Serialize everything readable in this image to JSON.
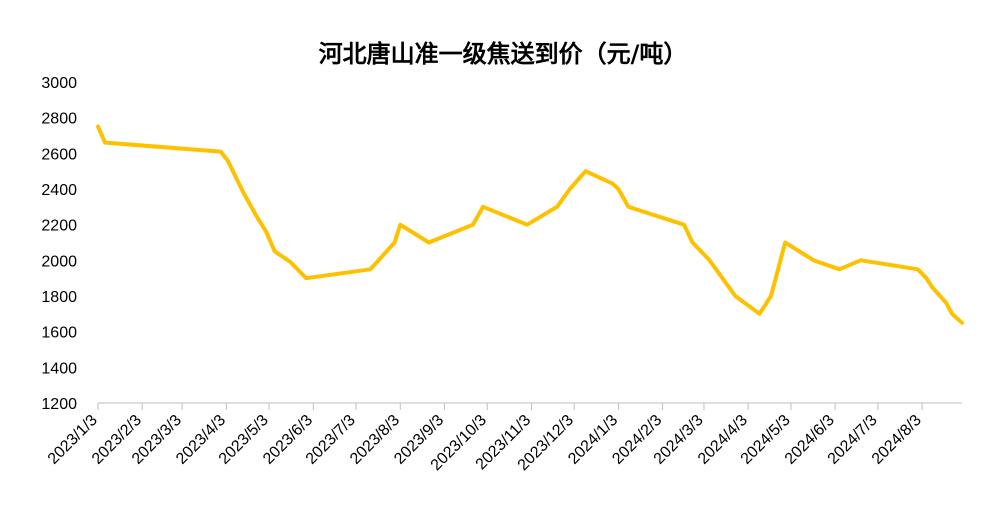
{
  "chart_data": {
    "type": "line",
    "title": "河北唐山准一级焦送到价（元/吨）",
    "xlabel": "",
    "ylabel": "",
    "ylim": [
      1200,
      3000
    ],
    "yticks": [
      1200,
      1400,
      1600,
      1800,
      2000,
      2200,
      2400,
      2600,
      2800,
      3000
    ],
    "xlim": [
      "2023-01-03",
      "2024-08-31"
    ],
    "xticks": [
      {
        "date": "2023-01-03",
        "label": "2023/1/3"
      },
      {
        "date": "2023-02-03",
        "label": "2023/2/3"
      },
      {
        "date": "2023-03-03",
        "label": "2023/3/3"
      },
      {
        "date": "2023-04-03",
        "label": "2023/4/3"
      },
      {
        "date": "2023-05-03",
        "label": "2023/5/3"
      },
      {
        "date": "2023-06-03",
        "label": "2023/6/3"
      },
      {
        "date": "2023-07-03",
        "label": "2023/7/3"
      },
      {
        "date": "2023-08-03",
        "label": "2023/8/3"
      },
      {
        "date": "2023-09-03",
        "label": "2023/9/3"
      },
      {
        "date": "2023-10-03",
        "label": "2023/10/3"
      },
      {
        "date": "2023-11-03",
        "label": "2023/11/3"
      },
      {
        "date": "2023-12-03",
        "label": "2023/12/3"
      },
      {
        "date": "2024-01-03",
        "label": "2024/1/3"
      },
      {
        "date": "2024-02-03",
        "label": "2024/2/3"
      },
      {
        "date": "2024-03-03",
        "label": "2024/3/3"
      },
      {
        "date": "2024-04-03",
        "label": "2024/4/3"
      },
      {
        "date": "2024-05-03",
        "label": "2024/5/3"
      },
      {
        "date": "2024-06-03",
        "label": "2024/6/3"
      },
      {
        "date": "2024-07-03",
        "label": "2024/7/3"
      },
      {
        "date": "2024-08-03",
        "label": "2024/8/3"
      }
    ],
    "grid": false,
    "legend": "none",
    "series": [
      {
        "color": "#FFC000",
        "points": [
          [
            "2023-01-03",
            2750
          ],
          [
            "2023-01-08",
            2660
          ],
          [
            "2023-03-30",
            2610
          ],
          [
            "2023-04-04",
            2560
          ],
          [
            "2023-04-15",
            2380
          ],
          [
            "2023-04-24",
            2250
          ],
          [
            "2023-05-01",
            2160
          ],
          [
            "2023-05-07",
            2050
          ],
          [
            "2023-05-18",
            1990
          ],
          [
            "2023-05-29",
            1900
          ],
          [
            "2023-07-13",
            1950
          ],
          [
            "2023-07-21",
            2020
          ],
          [
            "2023-07-30",
            2100
          ],
          [
            "2023-08-03",
            2200
          ],
          [
            "2023-08-23",
            2100
          ],
          [
            "2023-09-23",
            2200
          ],
          [
            "2023-09-30",
            2300
          ],
          [
            "2023-10-31",
            2200
          ],
          [
            "2023-11-21",
            2300
          ],
          [
            "2023-11-30",
            2400
          ],
          [
            "2023-12-11",
            2500
          ],
          [
            "2023-12-30",
            2430
          ],
          [
            "2024-01-03",
            2400
          ],
          [
            "2024-01-10",
            2300
          ],
          [
            "2024-02-18",
            2200
          ],
          [
            "2024-02-24",
            2100
          ],
          [
            "2024-03-07",
            2000
          ],
          [
            "2024-03-25",
            1800
          ],
          [
            "2024-04-11",
            1700
          ],
          [
            "2024-04-19",
            1800
          ],
          [
            "2024-04-29",
            2100
          ],
          [
            "2024-05-19",
            2000
          ],
          [
            "2024-06-06",
            1950
          ],
          [
            "2024-06-21",
            2000
          ],
          [
            "2024-07-31",
            1950
          ],
          [
            "2024-08-06",
            1900
          ],
          [
            "2024-08-10",
            1850
          ],
          [
            "2024-08-20",
            1760
          ],
          [
            "2024-08-24",
            1700
          ],
          [
            "2024-08-31",
            1650
          ]
        ]
      }
    ]
  }
}
